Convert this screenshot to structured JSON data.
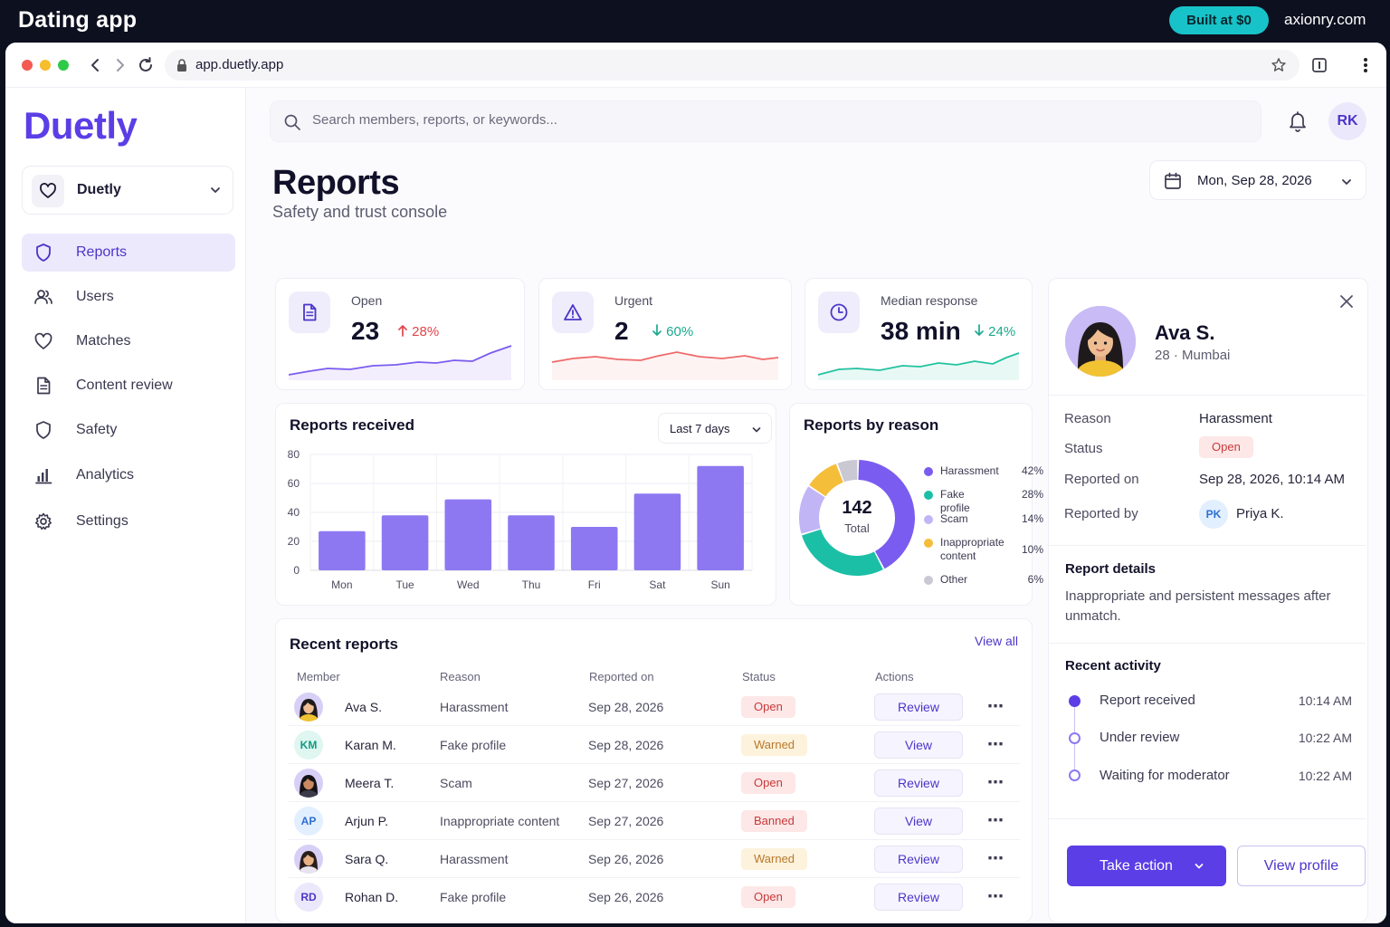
{
  "banner": {
    "title": "Dating app",
    "badge": "Built at $0",
    "site": "axionry.com"
  },
  "browser": {
    "url": "app.duetly.app"
  },
  "sidebar": {
    "logo": "Duetly",
    "workspace": "Duetly",
    "items": [
      {
        "label": "Reports",
        "icon": "shield-icon",
        "active": true
      },
      {
        "label": "Users",
        "icon": "users-icon"
      },
      {
        "label": "Matches",
        "icon": "heart-icon"
      },
      {
        "label": "Content review",
        "icon": "document-icon"
      },
      {
        "label": "Safety",
        "icon": "shield-icon"
      },
      {
        "label": "Analytics",
        "icon": "bar-chart-icon"
      },
      {
        "label": "Settings",
        "icon": "gear-icon"
      }
    ]
  },
  "header": {
    "search_placeholder": "Search members, reports, or keywords...",
    "user_initials": "RK",
    "title": "Reports",
    "subtitle": "Safety and trust console",
    "date": "Mon, Sep 28, 2026"
  },
  "kpis": [
    {
      "label": "Open",
      "value": "23",
      "change": "28%",
      "direction": "up",
      "color": "#e0454a",
      "spark_color": "#7b5cf0",
      "icon": "document-icon"
    },
    {
      "label": "Urgent",
      "value": "2",
      "change": "60%",
      "direction": "down",
      "color": "#1aa98f",
      "spark_color": "#ef6a6a",
      "icon": "warning-icon"
    },
    {
      "label": "Median response",
      "value": "38 min",
      "change": "24%",
      "direction": "down",
      "color": "#1aa98f",
      "spark_color": "#22c2a0",
      "icon": "clock-icon"
    }
  ],
  "reports_received": {
    "title": "Reports received",
    "range": "Last 7 days"
  },
  "reports_by_reason": {
    "title": "Reports by reason",
    "total": "142",
    "total_label": "Total"
  },
  "chart_data": [
    {
      "type": "bar",
      "title": "Reports received",
      "categories": [
        "Mon",
        "Tue",
        "Wed",
        "Thu",
        "Fri",
        "Sat",
        "Sun"
      ],
      "values": [
        27,
        38,
        49,
        38,
        30,
        53,
        72
      ],
      "ylim": [
        0,
        80
      ],
      "yticks": [
        "0",
        "20",
        "40",
        "60",
        "80"
      ],
      "grid": true,
      "color": "#8e78f2"
    },
    {
      "type": "pie",
      "title": "Reports by reason",
      "labels": [
        "Harassment",
        "Fake profile",
        "Scam",
        "Inappropriate content",
        "Other"
      ],
      "values": [
        42,
        28,
        14,
        10,
        6
      ],
      "value_labels": [
        "42%",
        "28%",
        "14%",
        "10%",
        "6%"
      ],
      "colors": [
        "#7b5cf0",
        "#1bbfa6",
        "#c2b5f6",
        "#f5be3a",
        "#c9c8d3"
      ],
      "legend": "right"
    }
  ],
  "recent_reports": {
    "title": "Recent reports",
    "view_all": "View all",
    "columns": [
      "Member",
      "Reason",
      "Reported on",
      "Status",
      "Actions"
    ],
    "rows": [
      {
        "member": "Ava S.",
        "initials": "",
        "photo": true,
        "reason": "Harassment",
        "date": "Sep 28, 2026",
        "status": "Open",
        "status_kind": "open",
        "action": "Review"
      },
      {
        "member": "Karan M.",
        "initials": "KM",
        "photo": false,
        "avatar_bg": "#dff6f1",
        "avatar_fg": "#139a82",
        "reason": "Fake profile",
        "date": "Sep 28, 2026",
        "status": "Warned",
        "status_kind": "warned",
        "action": "View"
      },
      {
        "member": "Meera T.",
        "initials": "",
        "photo": true,
        "reason": "Scam",
        "date": "Sep 27, 2026",
        "status": "Open",
        "status_kind": "open",
        "action": "Review"
      },
      {
        "member": "Arjun P.",
        "initials": "AP",
        "photo": false,
        "avatar_bg": "#e2efff",
        "avatar_fg": "#2f6fd1",
        "reason": "Inappropriate content",
        "date": "Sep 27, 2026",
        "status": "Banned",
        "status_kind": "banned",
        "action": "View"
      },
      {
        "member": "Sara Q.",
        "initials": "",
        "photo": true,
        "reason": "Harassment",
        "date": "Sep 26, 2026",
        "status": "Warned",
        "status_kind": "warned",
        "action": "Review"
      },
      {
        "member": "Rohan D.",
        "initials": "RD",
        "photo": false,
        "avatar_bg": "#ece8fb",
        "avatar_fg": "#4b36c9",
        "reason": "Fake profile",
        "date": "Sep 26, 2026",
        "status": "Open",
        "status_kind": "open",
        "action": "Review"
      }
    ]
  },
  "detail": {
    "name": "Ava S.",
    "meta": "28 · Mumbai",
    "fields": [
      {
        "key": "Reason",
        "value": "Harassment"
      },
      {
        "key": "Status",
        "value": "Open"
      },
      {
        "key": "Reported on",
        "value": "Sep 28, 2026, 10:14 AM"
      },
      {
        "key": "Reported by",
        "value": "Priya K.",
        "initials": "PK"
      }
    ],
    "details_title": "Report details",
    "details_text": "Inappropriate and persistent messages after unmatch.",
    "activity_title": "Recent activity",
    "activity": [
      {
        "label": "Report received",
        "time": "10:14 AM",
        "filled": true
      },
      {
        "label": "Under review",
        "time": "10:22 AM",
        "filled": false
      },
      {
        "label": "Waiting for moderator",
        "time": "10:22 AM",
        "filled": false
      }
    ],
    "primary_action": "Take action",
    "secondary_action": "View profile"
  }
}
